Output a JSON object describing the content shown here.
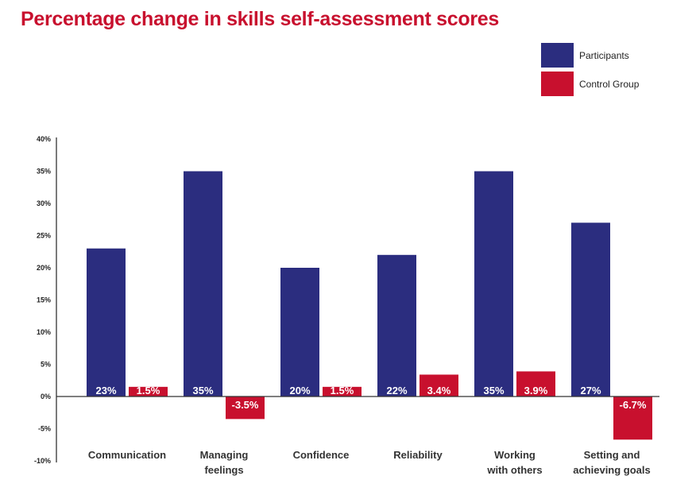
{
  "chart_data": {
    "type": "bar",
    "title": "Percentage change in skills self-assessment scores",
    "categories": [
      [
        "Communication"
      ],
      [
        "Managing",
        "feelings"
      ],
      [
        "Confidence"
      ],
      [
        "Reliability"
      ],
      [
        "Working",
        "with others"
      ],
      [
        "Setting and",
        "achieving goals"
      ]
    ],
    "series": [
      {
        "name": "Participants",
        "color": "#2b2d7f",
        "values": [
          23,
          35,
          20,
          22,
          35,
          27
        ],
        "labels": [
          "23%",
          "35%",
          "20%",
          "22%",
          "35%",
          "27%"
        ]
      },
      {
        "name": "Control Group",
        "color": "#c8102e",
        "values": [
          1.5,
          -3.5,
          1.5,
          3.4,
          3.9,
          -6.7
        ],
        "labels": [
          "1.5%",
          "-3.5%",
          "1.5%",
          "3.4%",
          "3.9%",
          "-6.7%"
        ]
      }
    ],
    "ylim": [
      -10,
      40
    ],
    "yticks": [
      "-10%",
      "-5%",
      "0%",
      "5%",
      "10%",
      "15%",
      "20%",
      "25%",
      "30%",
      "35%",
      "40%"
    ],
    "ytick_values": [
      -10,
      -5,
      0,
      5,
      10,
      15,
      20,
      25,
      30,
      35,
      40
    ],
    "xlabel": "",
    "ylabel": "",
    "grid": false,
    "legend": "top-right"
  }
}
